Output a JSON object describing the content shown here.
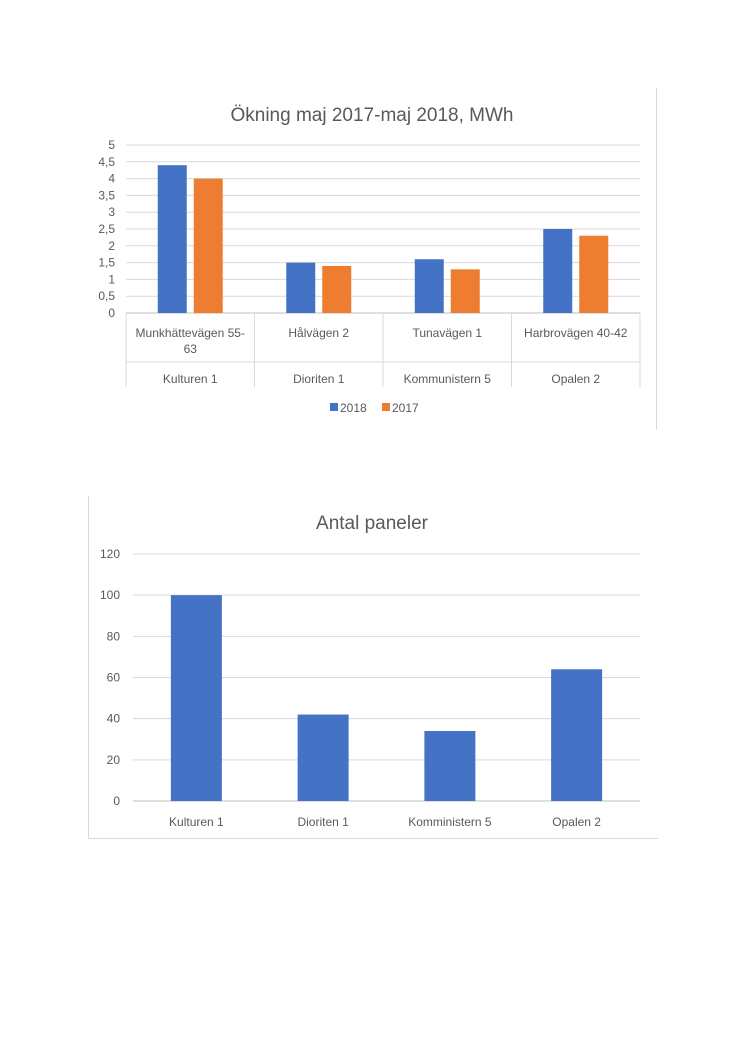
{
  "charts": [
    {
      "type": "bar",
      "title": "Ökning maj 2017-maj 2018, MWh",
      "categories": [
        [
          "Munkhättevägen 55-",
          "63"
        ],
        [
          "Hålvägen 2"
        ],
        [
          "Tunavägen 1"
        ],
        [
          "Harbrovägen 40-42"
        ]
      ],
      "groups": [
        "Kulturen 1",
        "Dioriten 1",
        "Kommunistern 5",
        "Opalen 2"
      ],
      "series": [
        {
          "name": "2018",
          "color": "#4472c4",
          "values": [
            4.4,
            1.5,
            1.6,
            2.5
          ]
        },
        {
          "name": "2017",
          "color": "#ed7d31",
          "values": [
            4.0,
            1.4,
            1.3,
            2.3
          ]
        }
      ],
      "yticks": [
        "0",
        "0,5",
        "1",
        "1,5",
        "2",
        "2,5",
        "3",
        "3,5",
        "4",
        "4,5",
        "5"
      ],
      "ylim": [
        0,
        5
      ],
      "legend": "bottom",
      "grid": true
    },
    {
      "type": "bar",
      "title": "Antal paneler",
      "categories": [
        "Kulturen 1",
        "Dioriten 1",
        "Komministern 5",
        "Opalen 2"
      ],
      "series": [
        {
          "name": "",
          "color": "#4472c4",
          "values": [
            100,
            42,
            34,
            64
          ]
        }
      ],
      "yticks": [
        "0",
        "20",
        "40",
        "60",
        "80",
        "100",
        "120"
      ],
      "ylim": [
        0,
        120
      ],
      "grid": true
    }
  ]
}
